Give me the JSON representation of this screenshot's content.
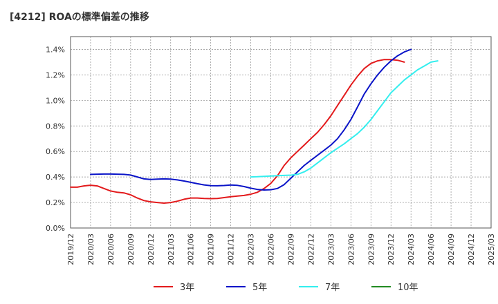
{
  "chart_data": {
    "type": "line",
    "title": "[4212]  ROAの標準偏差の推移",
    "xlabel": "",
    "ylabel": "",
    "y_tick_labels": [
      "0.0%",
      "0.2%",
      "0.4%",
      "0.6%",
      "0.8%",
      "1.0%",
      "1.2%",
      "1.4%"
    ],
    "ylim": [
      0,
      1.5
    ],
    "x_tick_labels": [
      "2019/12",
      "2020/03",
      "2020/06",
      "2020/09",
      "2020/12",
      "2021/03",
      "2021/06",
      "2021/09",
      "2021/12",
      "2022/03",
      "2022/06",
      "2022/09",
      "2022/12",
      "2023/03",
      "2023/06",
      "2023/09",
      "2023/12",
      "2024/03",
      "2024/06",
      "2024/09",
      "2024/12",
      "2025/03"
    ],
    "grid": true,
    "legend_position": "bottom",
    "series": [
      {
        "name": "3年",
        "color": "#e31a1c",
        "points": [
          [
            "2019/12",
            0.32
          ],
          [
            "2020/01",
            0.32
          ],
          [
            "2020/02",
            0.33
          ],
          [
            "2020/03",
            0.335
          ],
          [
            "2020/04",
            0.33
          ],
          [
            "2020/05",
            0.31
          ],
          [
            "2020/06",
            0.29
          ],
          [
            "2020/07",
            0.28
          ],
          [
            "2020/08",
            0.275
          ],
          [
            "2020/09",
            0.26
          ],
          [
            "2020/10",
            0.235
          ],
          [
            "2020/11",
            0.215
          ],
          [
            "2020/12",
            0.205
          ],
          [
            "2021/01",
            0.2
          ],
          [
            "2021/02",
            0.195
          ],
          [
            "2021/03",
            0.2
          ],
          [
            "2021/04",
            0.21
          ],
          [
            "2021/05",
            0.225
          ],
          [
            "2021/06",
            0.235
          ],
          [
            "2021/07",
            0.235
          ],
          [
            "2021/08",
            0.232
          ],
          [
            "2021/09",
            0.23
          ],
          [
            "2021/10",
            0.232
          ],
          [
            "2021/11",
            0.238
          ],
          [
            "2021/12",
            0.245
          ],
          [
            "2022/01",
            0.25
          ],
          [
            "2022/02",
            0.255
          ],
          [
            "2022/03",
            0.265
          ],
          [
            "2022/04",
            0.28
          ],
          [
            "2022/05",
            0.31
          ],
          [
            "2022/06",
            0.35
          ],
          [
            "2022/07",
            0.41
          ],
          [
            "2022/08",
            0.49
          ],
          [
            "2022/09",
            0.55
          ],
          [
            "2022/10",
            0.6
          ],
          [
            "2022/11",
            0.65
          ],
          [
            "2022/12",
            0.7
          ],
          [
            "2023/01",
            0.75
          ],
          [
            "2023/02",
            0.81
          ],
          [
            "2023/03",
            0.88
          ],
          [
            "2023/04",
            0.96
          ],
          [
            "2023/05",
            1.04
          ],
          [
            "2023/06",
            1.12
          ],
          [
            "2023/07",
            1.19
          ],
          [
            "2023/08",
            1.25
          ],
          [
            "2023/09",
            1.29
          ],
          [
            "2023/10",
            1.31
          ],
          [
            "2023/11",
            1.32
          ],
          [
            "2023/12",
            1.32
          ],
          [
            "2024/01",
            1.315
          ],
          [
            "2024/02",
            1.3
          ]
        ]
      },
      {
        "name": "5年",
        "color": "#0a14c8",
        "points": [
          [
            "2020/03",
            0.42
          ],
          [
            "2020/04",
            0.422
          ],
          [
            "2020/05",
            0.423
          ],
          [
            "2020/06",
            0.423
          ],
          [
            "2020/07",
            0.422
          ],
          [
            "2020/08",
            0.42
          ],
          [
            "2020/09",
            0.415
          ],
          [
            "2020/10",
            0.4
          ],
          [
            "2020/11",
            0.385
          ],
          [
            "2020/12",
            0.38
          ],
          [
            "2021/01",
            0.383
          ],
          [
            "2021/02",
            0.385
          ],
          [
            "2021/03",
            0.383
          ],
          [
            "2021/04",
            0.377
          ],
          [
            "2021/05",
            0.368
          ],
          [
            "2021/06",
            0.358
          ],
          [
            "2021/07",
            0.347
          ],
          [
            "2021/08",
            0.338
          ],
          [
            "2021/09",
            0.332
          ],
          [
            "2021/10",
            0.331
          ],
          [
            "2021/11",
            0.333
          ],
          [
            "2021/12",
            0.337
          ],
          [
            "2022/01",
            0.334
          ],
          [
            "2022/02",
            0.325
          ],
          [
            "2022/03",
            0.312
          ],
          [
            "2022/04",
            0.302
          ],
          [
            "2022/05",
            0.298
          ],
          [
            "2022/06",
            0.3
          ],
          [
            "2022/07",
            0.31
          ],
          [
            "2022/08",
            0.34
          ],
          [
            "2022/09",
            0.39
          ],
          [
            "2022/10",
            0.44
          ],
          [
            "2022/11",
            0.49
          ],
          [
            "2022/12",
            0.53
          ],
          [
            "2023/01",
            0.57
          ],
          [
            "2023/02",
            0.61
          ],
          [
            "2023/03",
            0.65
          ],
          [
            "2023/04",
            0.7
          ],
          [
            "2023/05",
            0.77
          ],
          [
            "2023/06",
            0.85
          ],
          [
            "2023/07",
            0.95
          ],
          [
            "2023/08",
            1.05
          ],
          [
            "2023/09",
            1.13
          ],
          [
            "2023/10",
            1.2
          ],
          [
            "2023/11",
            1.26
          ],
          [
            "2023/12",
            1.31
          ],
          [
            "2024/01",
            1.35
          ],
          [
            "2024/02",
            1.38
          ],
          [
            "2024/03",
            1.4
          ]
        ]
      },
      {
        "name": "7年",
        "color": "#33eeee",
        "points": [
          [
            "2022/03",
            0.4
          ],
          [
            "2022/04",
            0.402
          ],
          [
            "2022/05",
            0.405
          ],
          [
            "2022/06",
            0.408
          ],
          [
            "2022/07",
            0.41
          ],
          [
            "2022/08",
            0.412
          ],
          [
            "2022/09",
            0.414
          ],
          [
            "2022/10",
            0.42
          ],
          [
            "2022/11",
            0.44
          ],
          [
            "2022/12",
            0.47
          ],
          [
            "2023/01",
            0.51
          ],
          [
            "2023/02",
            0.55
          ],
          [
            "2023/03",
            0.59
          ],
          [
            "2023/04",
            0.625
          ],
          [
            "2023/05",
            0.66
          ],
          [
            "2023/06",
            0.7
          ],
          [
            "2023/07",
            0.74
          ],
          [
            "2023/08",
            0.79
          ],
          [
            "2023/09",
            0.85
          ],
          [
            "2023/10",
            0.92
          ],
          [
            "2023/11",
            0.99
          ],
          [
            "2023/12",
            1.06
          ],
          [
            "2024/01",
            1.11
          ],
          [
            "2024/02",
            1.16
          ],
          [
            "2024/03",
            1.2
          ],
          [
            "2024/04",
            1.24
          ],
          [
            "2024/05",
            1.27
          ],
          [
            "2024/06",
            1.3
          ],
          [
            "2024/07",
            1.31
          ]
        ]
      },
      {
        "name": "10年",
        "color": "#228b22",
        "points": []
      }
    ]
  }
}
